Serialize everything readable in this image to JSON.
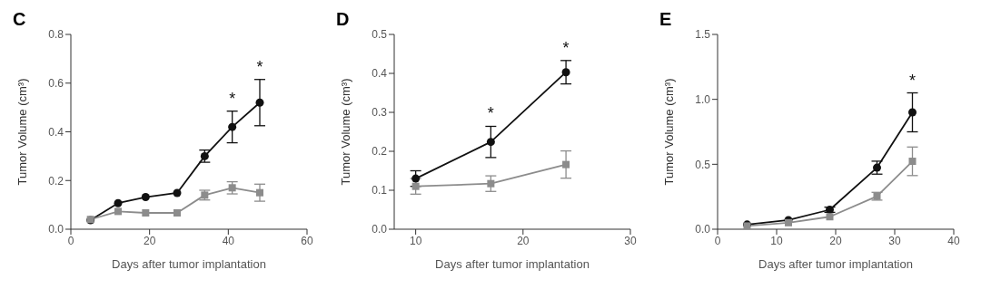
{
  "chart_data": [
    {
      "type": "line",
      "title": "C",
      "xlabel": "Days after tumor implantation",
      "ylabel": "Tumor Volume (cm³)",
      "x": [
        5,
        12,
        19,
        27,
        34,
        41,
        48
      ],
      "xlim": [
        0,
        60
      ],
      "xticks": [
        0,
        20,
        40,
        60
      ],
      "ylim": [
        0,
        0.8
      ],
      "yticks": [
        {
          "value": 0,
          "label": "0.0"
        },
        {
          "value": 0.2,
          "label": "0.2"
        },
        {
          "value": 0.4,
          "label": "0.4"
        },
        {
          "value": 0.6,
          "label": "0.6"
        },
        {
          "value": 0.8,
          "label": "0.8"
        }
      ],
      "line_style": "solid",
      "series": [
        {
          "color": "#111111",
          "marker": "circle",
          "values": [
            0.037,
            0.107,
            0.132,
            0.149,
            0.3,
            0.42,
            0.52
          ],
          "errors": [
            null,
            null,
            null,
            null,
            0.025,
            0.065,
            0.095
          ]
        },
        {
          "color": "#8c8c8c",
          "marker": "square",
          "values": [
            0.04,
            0.073,
            0.067,
            0.067,
            0.14,
            0.17,
            0.15
          ],
          "errors": [
            null,
            null,
            null,
            null,
            0.02,
            0.025,
            0.035
          ]
        }
      ],
      "annotations": [
        "*",
        "*"
      ]
    },
    {
      "type": "line",
      "title": "D",
      "xlabel": "Days after tumor implantation",
      "ylabel": "Tumor Volume (cm³)",
      "x": [
        10,
        17,
        24
      ],
      "xlim": [
        8,
        30
      ],
      "xticks": [
        10,
        20,
        30
      ],
      "ylim": [
        0,
        0.5
      ],
      "yticks": [
        {
          "value": 0,
          "label": "0.0"
        },
        {
          "value": 0.1,
          "label": "0.1"
        },
        {
          "value": 0.2,
          "label": "0.2"
        },
        {
          "value": 0.3,
          "label": "0.3"
        },
        {
          "value": 0.4,
          "label": "0.4"
        },
        {
          "value": 0.5,
          "label": "0.5"
        }
      ],
      "line_style": "solid",
      "series": [
        {
          "color": "#111111",
          "marker": "circle",
          "values": [
            0.13,
            0.224,
            0.403
          ],
          "errors": [
            0.02,
            0.04,
            0.03
          ]
        },
        {
          "color": "#8c8c8c",
          "marker": "square",
          "values": [
            0.11,
            0.117,
            0.166
          ],
          "errors": [
            0.02,
            0.02,
            0.035
          ]
        }
      ],
      "annotations": [
        "*",
        "*"
      ]
    },
    {
      "type": "line",
      "title": "E",
      "xlabel": "Days after tumor implantation",
      "ylabel": "Tumor Volume (cm³)",
      "x": [
        5,
        12,
        19,
        27,
        33
      ],
      "xlim": [
        0,
        40
      ],
      "xticks": [
        0,
        10,
        20,
        30,
        40
      ],
      "ylim": [
        0,
        1.5
      ],
      "yticks": [
        {
          "value": 0,
          "label": "0.0"
        },
        {
          "value": 0.5,
          "label": "0.5"
        },
        {
          "value": 1,
          "label": "1.0"
        },
        {
          "value": 1.5,
          "label": "1.5"
        }
      ],
      "line_style": "solid",
      "series": [
        {
          "color": "#111111",
          "marker": "circle",
          "values": [
            0.036,
            0.07,
            0.15,
            0.474,
            0.9
          ],
          "errors": [
            null,
            null,
            0.02,
            0.05,
            0.15
          ]
        },
        {
          "color": "#8c8c8c",
          "marker": "square",
          "values": [
            0.025,
            0.05,
            0.096,
            0.254,
            0.523
          ],
          "errors": [
            null,
            null,
            null,
            0.03,
            0.11
          ]
        }
      ],
      "annotations": [
        "*"
      ]
    }
  ]
}
